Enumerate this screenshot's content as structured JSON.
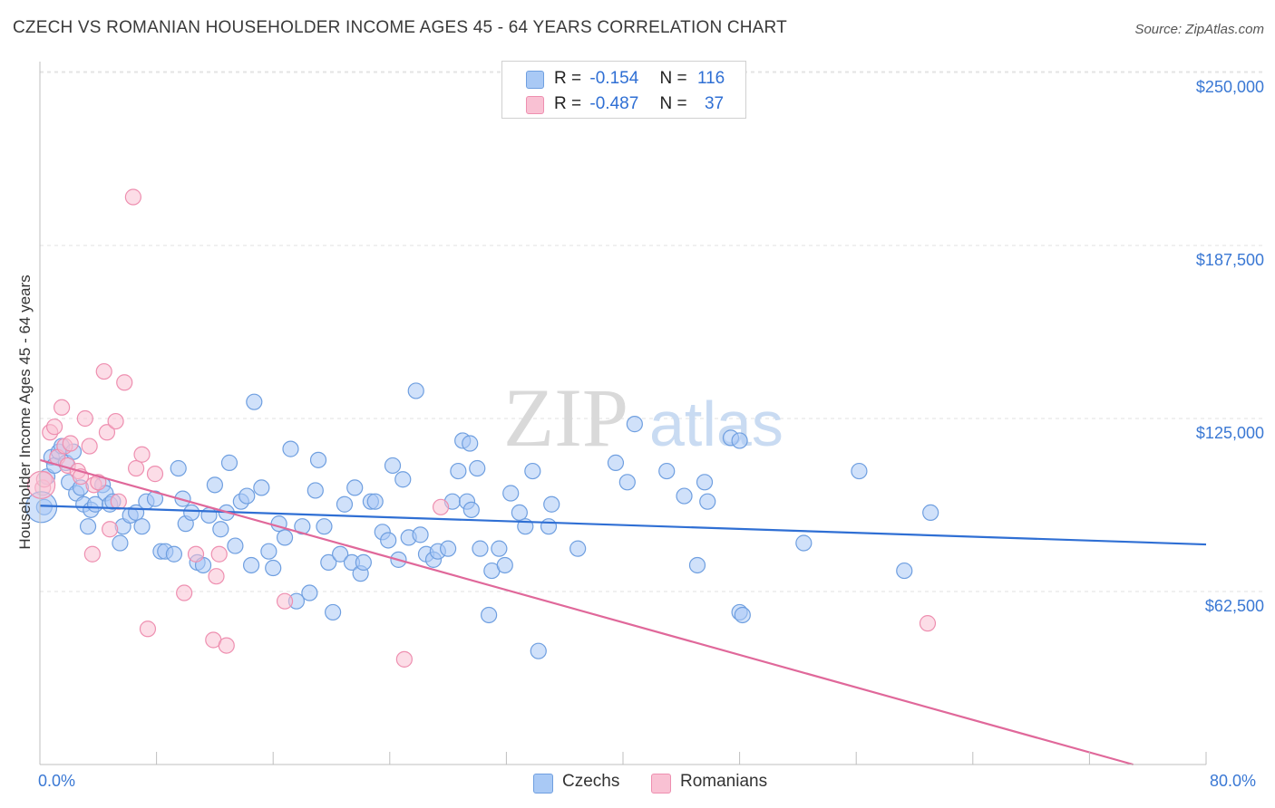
{
  "title": "CZECH VS ROMANIAN HOUSEHOLDER INCOME AGES 45 - 64 YEARS CORRELATION CHART",
  "source": "Source: ZipAtlas.com",
  "watermark": {
    "zip": "ZIP",
    "atlas": "atlas"
  },
  "legend": {
    "czech": {
      "r_label": "R =",
      "r_value": "-0.154",
      "n_label": "N =",
      "n_value": "116"
    },
    "romanian": {
      "r_label": "R =",
      "r_value": "-0.487",
      "n_label": "N =",
      "n_value": "37"
    }
  },
  "bottom_legend": {
    "czechs": "Czechs",
    "romanians": "Romanians"
  },
  "colors": {
    "czech_fill": "#a9c9f5",
    "czech_stroke": "#6f9fe0",
    "czech_line": "#2f6fd4",
    "romanian_fill": "#f9c1d3",
    "romanian_stroke": "#ee8fb0",
    "romanian_line": "#e0689a",
    "tick_label": "#3a78d4"
  },
  "chart_data": {
    "type": "scatter",
    "title": "CZECH VS ROMANIAN HOUSEHOLDER INCOME AGES 45 - 64 YEARS CORRELATION CHART",
    "ylabel": "Householder Income Ages 45 - 64 years",
    "xlabel": "",
    "xlim": [
      0,
      80
    ],
    "ylim": [
      0,
      250000
    ],
    "x_tick_labels": [
      "0.0%",
      "80.0%"
    ],
    "y_tick_labels": [
      "$250,000",
      "$187,500",
      "$125,000",
      "$62,500"
    ],
    "y_ticks": [
      250000,
      187500,
      125000,
      62500
    ],
    "grid": true,
    "series": [
      {
        "name": "Czechs",
        "r": -0.154,
        "n": 116,
        "trend": [
          [
            0,
            93500
          ],
          [
            80,
            79500
          ]
        ],
        "points": [
          [
            0.3,
            93000
          ],
          [
            0.5,
            104000
          ],
          [
            0.8,
            111000
          ],
          [
            1.0,
            108000
          ],
          [
            1.3,
            113000
          ],
          [
            1.5,
            115000
          ],
          [
            1.8,
            109000
          ],
          [
            2.0,
            102000
          ],
          [
            2.3,
            113000
          ],
          [
            2.5,
            98000
          ],
          [
            2.8,
            100000
          ],
          [
            3.0,
            94000
          ],
          [
            3.3,
            86000
          ],
          [
            3.5,
            92000
          ],
          [
            3.8,
            94000
          ],
          [
            4.3,
            101000
          ],
          [
            4.5,
            98000
          ],
          [
            4.8,
            94000
          ],
          [
            5.0,
            95000
          ],
          [
            5.5,
            80000
          ],
          [
            5.7,
            86000
          ],
          [
            6.2,
            90000
          ],
          [
            6.6,
            91000
          ],
          [
            7.0,
            86000
          ],
          [
            7.3,
            95000
          ],
          [
            7.9,
            96000
          ],
          [
            8.3,
            77000
          ],
          [
            8.6,
            77000
          ],
          [
            9.2,
            76000
          ],
          [
            9.5,
            107000
          ],
          [
            9.8,
            96000
          ],
          [
            10.0,
            87000
          ],
          [
            10.4,
            91000
          ],
          [
            10.8,
            73000
          ],
          [
            11.2,
            72000
          ],
          [
            11.6,
            90000
          ],
          [
            12.0,
            101000
          ],
          [
            12.4,
            85000
          ],
          [
            12.8,
            91000
          ],
          [
            13.0,
            109000
          ],
          [
            13.4,
            79000
          ],
          [
            13.8,
            95000
          ],
          [
            14.2,
            97000
          ],
          [
            14.5,
            72000
          ],
          [
            14.7,
            131000
          ],
          [
            15.2,
            100000
          ],
          [
            15.7,
            77000
          ],
          [
            16.0,
            71000
          ],
          [
            16.4,
            87000
          ],
          [
            16.8,
            82000
          ],
          [
            17.2,
            114000
          ],
          [
            17.6,
            59000
          ],
          [
            18.0,
            86000
          ],
          [
            18.5,
            62000
          ],
          [
            18.9,
            99000
          ],
          [
            19.1,
            110000
          ],
          [
            19.5,
            86000
          ],
          [
            19.8,
            73000
          ],
          [
            20.1,
            55000
          ],
          [
            20.6,
            76000
          ],
          [
            20.9,
            94000
          ],
          [
            21.4,
            73000
          ],
          [
            21.6,
            100000
          ],
          [
            22.0,
            69000
          ],
          [
            22.2,
            73000
          ],
          [
            22.7,
            95000
          ],
          [
            23.0,
            95000
          ],
          [
            23.5,
            84000
          ],
          [
            23.9,
            81000
          ],
          [
            24.2,
            108000
          ],
          [
            24.6,
            74000
          ],
          [
            24.9,
            103000
          ],
          [
            25.3,
            82000
          ],
          [
            25.8,
            135000
          ],
          [
            26.1,
            83000
          ],
          [
            26.5,
            76000
          ],
          [
            27.0,
            74000
          ],
          [
            27.3,
            77000
          ],
          [
            28.0,
            78000
          ],
          [
            28.3,
            95000
          ],
          [
            28.7,
            106000
          ],
          [
            29.0,
            117000
          ],
          [
            29.3,
            95000
          ],
          [
            29.6,
            92000
          ],
          [
            30.0,
            107000
          ],
          [
            30.2,
            78000
          ],
          [
            30.8,
            54000
          ],
          [
            31.0,
            70000
          ],
          [
            31.5,
            78000
          ],
          [
            31.9,
            72000
          ],
          [
            32.3,
            98000
          ],
          [
            32.9,
            91000
          ],
          [
            33.3,
            86000
          ],
          [
            33.8,
            106000
          ],
          [
            34.2,
            41000
          ],
          [
            34.9,
            86000
          ],
          [
            35.1,
            94000
          ],
          [
            36.9,
            78000
          ],
          [
            39.5,
            109000
          ],
          [
            40.3,
            102000
          ],
          [
            40.8,
            123000
          ],
          [
            43.0,
            106000
          ],
          [
            44.2,
            97000
          ],
          [
            45.1,
            72000
          ],
          [
            45.6,
            102000
          ],
          [
            45.8,
            95000
          ],
          [
            47.4,
            118000
          ],
          [
            48.0,
            55000
          ],
          [
            48.2,
            54000
          ],
          [
            52.4,
            80000
          ],
          [
            56.2,
            106000
          ],
          [
            59.3,
            70000
          ],
          [
            61.1,
            91000
          ],
          [
            48.0,
            117000
          ],
          [
            29.5,
            116000
          ]
        ]
      },
      {
        "name": "Romanians",
        "r": -0.487,
        "n": 37,
        "trend": [
          [
            0,
            110000
          ],
          [
            75,
            0
          ]
        ],
        "points": [
          [
            0.2,
            100000
          ],
          [
            0.3,
            103000
          ],
          [
            0.7,
            120000
          ],
          [
            1.0,
            122000
          ],
          [
            1.2,
            111000
          ],
          [
            1.5,
            129000
          ],
          [
            1.7,
            115000
          ],
          [
            1.9,
            108000
          ],
          [
            2.1,
            116000
          ],
          [
            2.6,
            106000
          ],
          [
            2.8,
            104000
          ],
          [
            3.1,
            125000
          ],
          [
            3.4,
            115000
          ],
          [
            3.7,
            101000
          ],
          [
            4.0,
            102000
          ],
          [
            4.4,
            142000
          ],
          [
            4.6,
            120000
          ],
          [
            4.8,
            85000
          ],
          [
            5.2,
            124000
          ],
          [
            5.4,
            95000
          ],
          [
            5.8,
            138000
          ],
          [
            6.4,
            205000
          ],
          [
            6.6,
            107000
          ],
          [
            7.0,
            112000
          ],
          [
            7.4,
            49000
          ],
          [
            7.9,
            105000
          ],
          [
            9.9,
            62000
          ],
          [
            10.7,
            76000
          ],
          [
            11.9,
            45000
          ],
          [
            12.1,
            68000
          ],
          [
            12.3,
            76000
          ],
          [
            12.8,
            43000
          ],
          [
            16.8,
            59000
          ],
          [
            25.0,
            38000
          ],
          [
            27.5,
            93000
          ],
          [
            60.9,
            51000
          ],
          [
            3.6,
            76000
          ]
        ]
      }
    ]
  }
}
